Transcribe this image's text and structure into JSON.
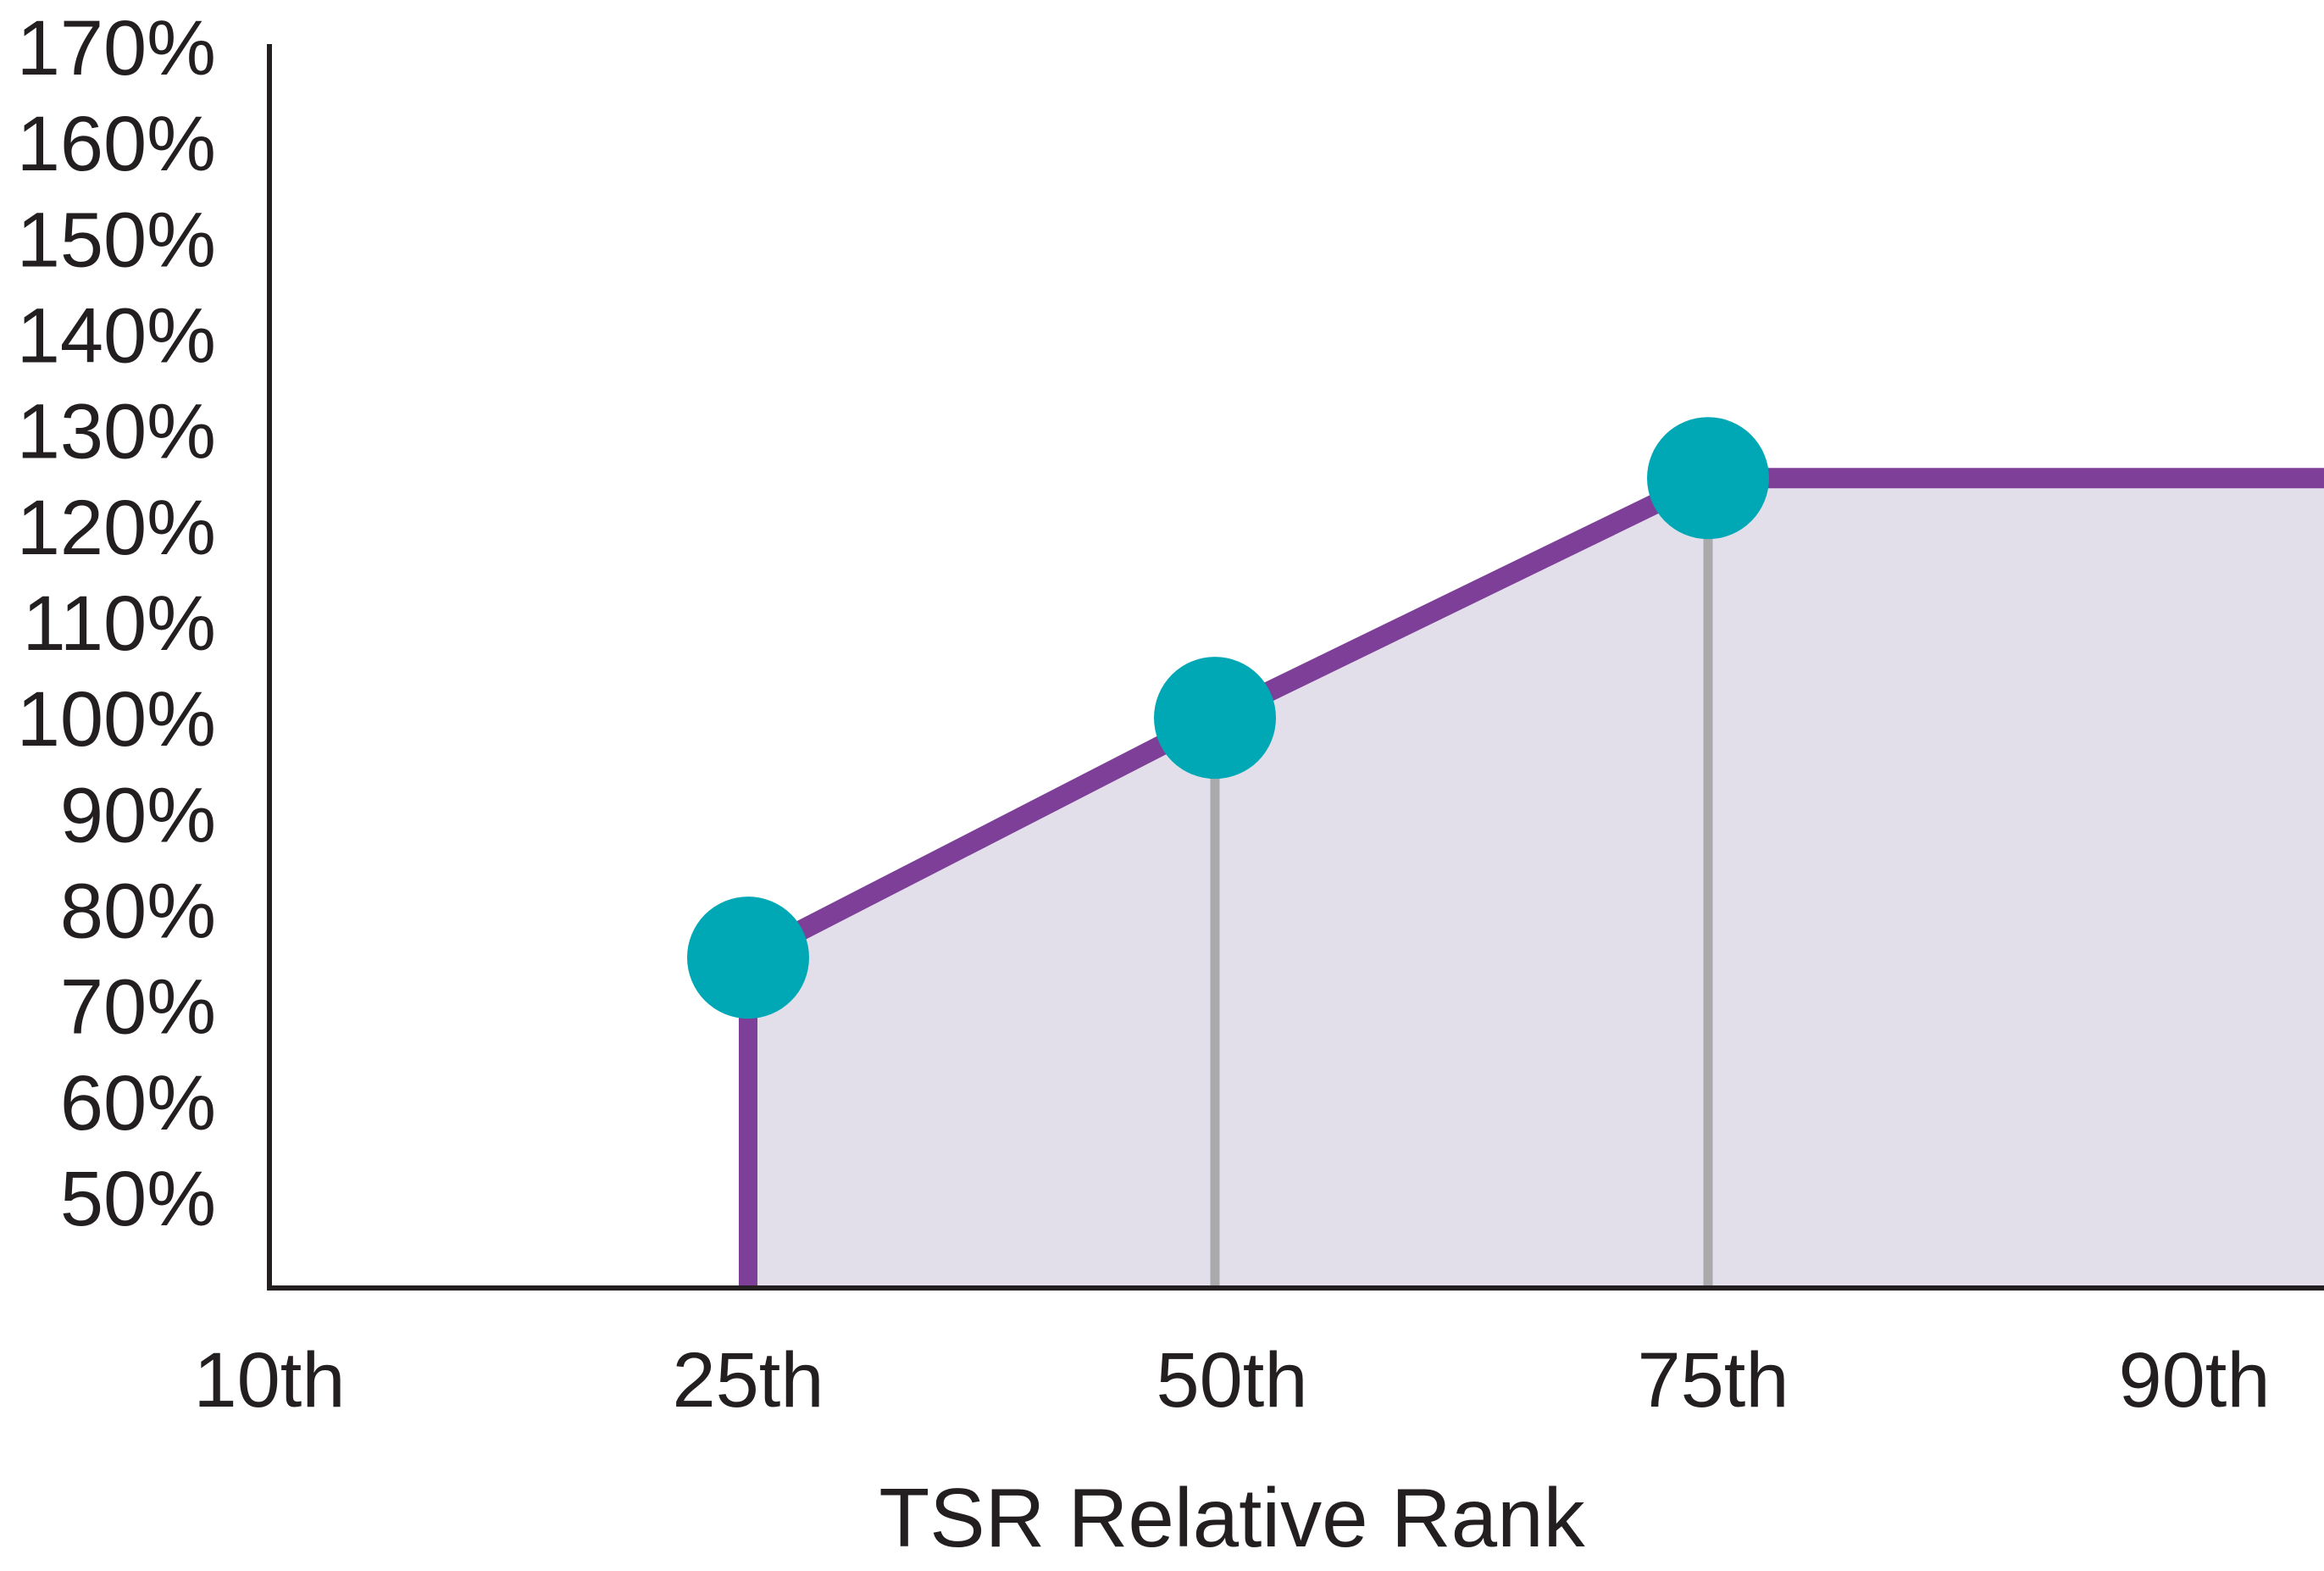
{
  "chart_data": {
    "type": "line",
    "xlabel": "TSR Relative Rank",
    "ylabel": "",
    "x_ticks": [
      "10th",
      "25th",
      "50th",
      "75th",
      "90th"
    ],
    "y_ticks": [
      "50%",
      "60%",
      "70%",
      "80%",
      "90%",
      "100%",
      "110%",
      "120%",
      "130%",
      "140%",
      "150%",
      "160%",
      "170%"
    ],
    "y_range": [
      45,
      175
    ],
    "grid": false,
    "legend": "none",
    "series": [
      {
        "points": [
          {
            "x": "25th",
            "y": 75
          },
          {
            "x": "50th",
            "y": 100
          },
          {
            "x": "75th",
            "y": 125
          },
          {
            "x": "90th",
            "y": 125
          }
        ],
        "markers_at": [
          "25th",
          "50th",
          "75th"
        ]
      }
    ],
    "colors": {
      "line": "#7d3f98",
      "fill": "#e3dfea",
      "marker": "#00a8b5",
      "drop_line": "#aaaaad",
      "axis": "#231f20"
    }
  }
}
